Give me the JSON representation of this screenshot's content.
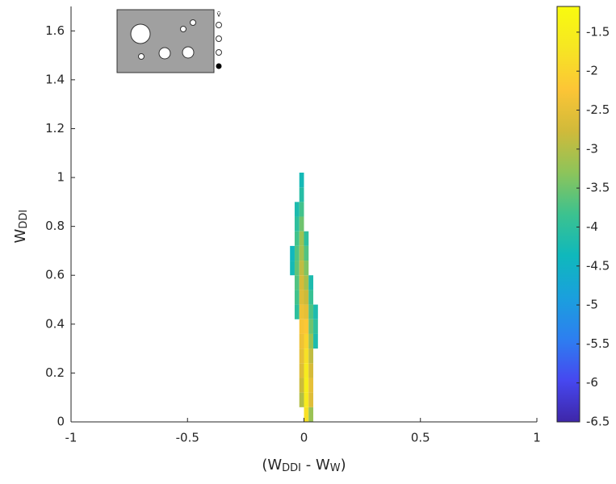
{
  "chart_data": {
    "type": "heatmap2d",
    "xlabel": [
      "(W",
      "DDI",
      " - W",
      "W",
      ")"
    ],
    "ylabel": [
      "W",
      "DDI"
    ],
    "inset_label": "v̄",
    "xlim": [
      -1,
      1
    ],
    "xticks": [
      -1,
      -0.5,
      0,
      0.5,
      1
    ],
    "ylim": [
      0,
      1.7
    ],
    "yticks": [
      0,
      0.2,
      0.4,
      0.6,
      0.8,
      1,
      1.2,
      1.4,
      1.6
    ],
    "clim": [
      -6.5,
      -1.17
    ],
    "cticks": [
      -6.5,
      -6,
      -5.5,
      -5,
      -4.5,
      -4,
      -3.5,
      -3,
      -2.5,
      -2,
      -1.5
    ],
    "colormap": [
      "#3e26a8",
      "#4648f0",
      "#2d7ff0",
      "#1aa0dd",
      "#0fb8bc",
      "#3cc28f",
      "#8dc45a",
      "#d0ba3a",
      "#fcc536",
      "#f6e623",
      "#f9fb0e"
    ],
    "binsize": [
      0.02,
      0.06
    ],
    "cells": {
      "x": [
        -0.05,
        -0.05,
        -0.03,
        -0.03,
        -0.03,
        -0.03,
        -0.03,
        -0.03,
        -0.03,
        -0.03,
        -0.01,
        -0.01,
        -0.01,
        -0.01,
        -0.01,
        -0.01,
        -0.01,
        -0.01,
        -0.01,
        -0.01,
        -0.01,
        -0.01,
        -0.01,
        -0.01,
        -0.01,
        -0.01,
        0.01,
        0.01,
        0.01,
        0.01,
        0.01,
        0.01,
        0.01,
        0.01,
        0.01,
        0.01,
        0.01,
        0.01,
        0.01,
        0.03,
        0.03,
        0.03,
        0.03,
        0.03,
        0.03,
        0.03,
        0.03,
        0.03,
        0.03,
        0.05,
        0.05,
        0.05
      ],
      "y": [
        0.63,
        0.69,
        0.45,
        0.51,
        0.57,
        0.63,
        0.69,
        0.75,
        0.81,
        0.87,
        0.09,
        0.15,
        0.21,
        0.27,
        0.33,
        0.39,
        0.45,
        0.51,
        0.57,
        0.63,
        0.69,
        0.75,
        0.81,
        0.87,
        0.93,
        0.99,
        0.03,
        0.09,
        0.15,
        0.21,
        0.27,
        0.33,
        0.39,
        0.45,
        0.51,
        0.57,
        0.63,
        0.69,
        0.75,
        0.03,
        0.09,
        0.15,
        0.21,
        0.27,
        0.33,
        0.39,
        0.45,
        0.51,
        0.57,
        0.33,
        0.39,
        0.45
      ],
      "z": [
        -4.3,
        -4.4,
        -4.0,
        -3.8,
        -3.7,
        -3.6,
        -3.7,
        -3.8,
        -4.0,
        -4.2,
        -3.0,
        -2.8,
        -2.6,
        -2.5,
        -2.4,
        -2.3,
        -2.4,
        -2.6,
        -2.7,
        -2.9,
        -3.1,
        -3.2,
        -3.5,
        -3.8,
        -4.1,
        -4.3,
        -1.8,
        -1.6,
        -1.5,
        -1.6,
        -1.8,
        -2.0,
        -2.2,
        -2.5,
        -2.8,
        -3.1,
        -3.4,
        -3.7,
        -4.0,
        -3.2,
        -2.6,
        -2.5,
        -2.7,
        -2.9,
        -3.2,
        -3.5,
        -3.7,
        -3.9,
        -4.2,
        -4.2,
        -4.0,
        -4.2
      ]
    }
  }
}
